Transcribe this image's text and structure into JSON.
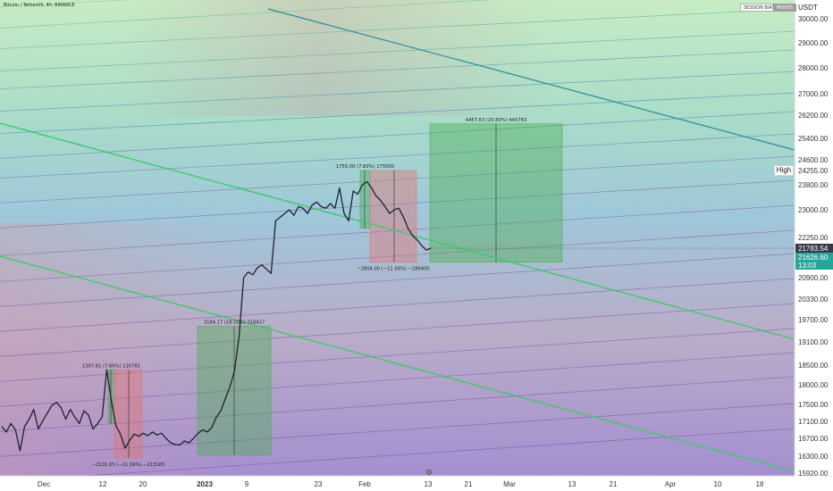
{
  "header": {
    "symbol_line": "Bitcoin / TetherUS, 4h, BINANCE",
    "currency": "USDT",
    "badges": [
      "SESSION BIAS",
      "MOVES"
    ]
  },
  "chart_data": {
    "type": "line",
    "title": "Bitcoin / TetherUS, 4h, BINANCE",
    "y_axis": {
      "unit": "USDT",
      "ticks": [
        30000,
        29000,
        28000,
        27000,
        26200,
        25400,
        24600,
        24255,
        23800,
        23000,
        22250,
        21783.54,
        21626.6,
        20900,
        20330,
        19700,
        19100,
        18500,
        18000,
        17500,
        17100,
        16700,
        16300,
        15920
      ],
      "tick_labels": [
        "30000.00",
        "29000.00",
        "28000.00",
        "27000.00",
        "26200.00",
        "25400.00",
        "24600.00",
        "24255.00",
        "23800.00",
        "23000.00",
        "22250.00",
        "21783.54",
        "21626.60",
        "20900.00",
        "20330.00",
        "19700.00",
        "19100.00",
        "18500.00",
        "18000.00",
        "17500.00",
        "17100.00",
        "16700.00",
        "16300.00",
        "15920.00"
      ]
    },
    "x_axis": {
      "tick_labels": [
        "Dec",
        "12",
        "20",
        "2023",
        "9",
        "23",
        "Feb",
        "13",
        "21",
        "Mar",
        "13",
        "21",
        "Apr",
        "10",
        "18"
      ]
    },
    "price_labels": {
      "last_price": "21783.54",
      "current_price": "21626.60",
      "countdown": "13:03",
      "high_label": "High"
    },
    "close_series": [
      16980,
      16850,
      17050,
      16900,
      16420,
      16980,
      17150,
      17380,
      16920,
      17120,
      17300,
      17480,
      17550,
      17420,
      17150,
      17380,
      17200,
      17050,
      17350,
      17250,
      16920,
      17050,
      17200,
      18380,
      17600,
      17000,
      16800,
      16480,
      16650,
      16800,
      16750,
      16820,
      16760,
      16850,
      16780,
      16820,
      16700,
      16600,
      16560,
      16550,
      16640,
      16600,
      16700,
      16820,
      16900,
      16850,
      16950,
      17200,
      17350,
      17650,
      17950,
      18350,
      19250,
      20900,
      21100,
      21000,
      21250,
      21350,
      21200,
      21050,
      22700,
      22800,
      22900,
      23000,
      22850,
      23100,
      23050,
      22900,
      23150,
      23250,
      23100,
      23050,
      23200,
      23050,
      23700,
      22900,
      22700,
      23600,
      23500,
      23800,
      23900,
      23700,
      23450,
      23300,
      23100,
      22900,
      23000,
      23050,
      22800,
      22500,
      22300,
      22150,
      21900,
      21750,
      21783.54
    ],
    "measure_boxes": [
      {
        "label": "1307.81 (7.66%) 130781",
        "kind": "gain",
        "low": 17050,
        "high": 18380
      },
      {
        "label": "−2131.65 (−11.59%) −213165",
        "kind": "loss",
        "low": 16260,
        "high": 18380
      },
      {
        "label": "3184.17 (19.50%) 318417",
        "kind": "gain",
        "low": 16330,
        "high": 19520
      },
      {
        "label": "1755.00 (7.80%) 175500",
        "kind": "gain",
        "low": 22500,
        "high": 24255
      },
      {
        "label": "−2804.00 (−11.56%) −280400",
        "kind": "loss",
        "low": 21450,
        "high": 24255
      },
      {
        "label": "4457.63 (20.80%) 445763",
        "kind": "gain",
        "low": 21450,
        "high": 25900
      }
    ],
    "colors": {
      "gain_box": "#4caf50",
      "loss_box": "#e57373",
      "last_price_bg": "#363a45",
      "current_price_bg": "#26a69a",
      "trend_green": "#3fc96b",
      "trend_teal": "#2a8c9a"
    }
  }
}
